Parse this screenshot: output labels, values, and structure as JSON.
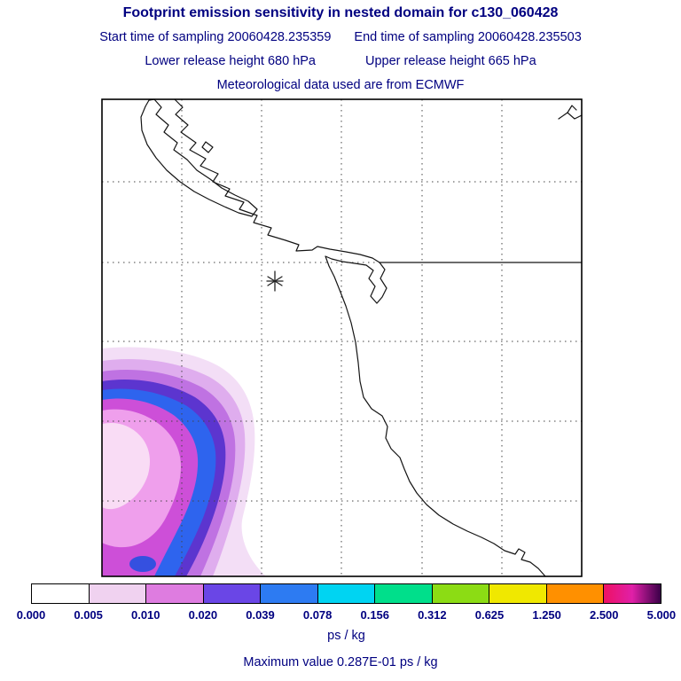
{
  "header": {
    "title": "Footprint emission sensitivity in nested domain for c130_060428",
    "start_time_label": "Start time of sampling 20060428.235359",
    "end_time_label": "End time of sampling 20060428.235503",
    "lower_release_label": "Lower release height  680 hPa",
    "upper_release_label": "Upper release height  665 hPa",
    "met_data_label": "Meteorological data used are from ECMWF"
  },
  "colorbar": {
    "tick_labels": [
      "0.000",
      "0.005",
      "0.010",
      "0.020",
      "0.039",
      "0.078",
      "0.156",
      "0.312",
      "0.625",
      "1.250",
      "2.500",
      "5.000"
    ],
    "segment_colors": [
      "#ffffff",
      "#f0d2f0",
      "#de7ce0",
      "#6a46e6",
      "#2d7bf2",
      "#00d4f2",
      "#00df8b",
      "#8cdc14",
      "#f0e800",
      "#ff9000",
      [
        "#ee1164",
        "#e020a8",
        "#3a0048"
      ]
    ],
    "units": "ps / kg"
  },
  "footer": {
    "max_value_label": "Maximum value  0.287E-01 ps / kg"
  },
  "plume_colors": [
    "#f3def6",
    "#dfadee",
    "#bf72e2",
    "#5c35cf",
    "#2e64ee",
    "#cd4fd8",
    "#ef9fec",
    "#f9dcf5",
    "#3550e0"
  ],
  "chart_data": {
    "type": "heatmap",
    "title": "Footprint emission sensitivity in nested domain for c130_060428",
    "units": "ps / kg",
    "contour_levels": [
      0.0,
      0.005,
      0.01,
      0.02,
      0.039,
      0.078,
      0.156,
      0.312,
      0.625,
      1.25,
      2.5,
      5.0
    ],
    "max_value_text": "0.287E-01",
    "max_value_numeric": 0.0287,
    "start_time_of_sampling": "20060428.235359",
    "end_time_of_sampling": "20060428.235503",
    "lower_release_height_hPa": 680,
    "upper_release_height_hPa": 665,
    "meteorological_data_source": "ECMWF",
    "legend_position": "bottom horizontal colorbar",
    "grid": "dashed lat-lon graticule, 6x6 cells, solid border segment on second horizontal line east of coastline",
    "receptor_marker": "asterisk offshore near coast at roughly 36% across, 38% down the map",
    "plume": "nested filled contours in lower-left of domain over the Pacific, peak bin 0.020-0.039 ps/kg"
  }
}
